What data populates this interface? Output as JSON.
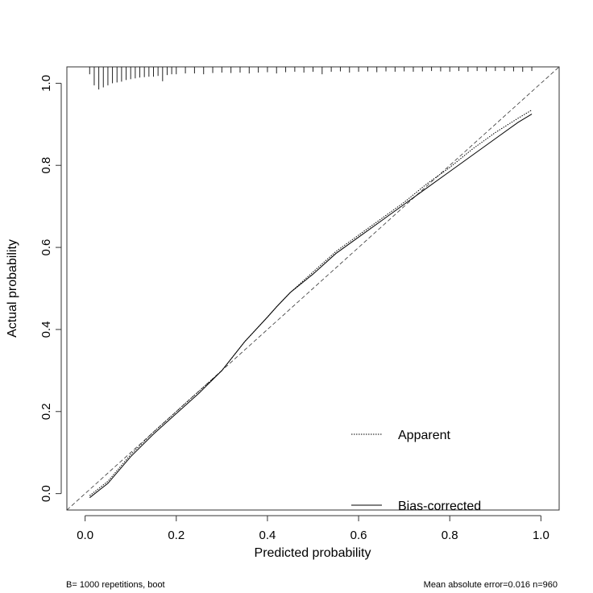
{
  "chart_data": {
    "type": "line",
    "title": "",
    "xlabel": "Predicted probability",
    "ylabel": "Actual probability",
    "xlim": [
      -0.04,
      1.04
    ],
    "ylim": [
      -0.04,
      1.04
    ],
    "x_ticks": [
      0.0,
      0.2,
      0.4,
      0.6,
      0.8,
      1.0
    ],
    "x_tick_labels": [
      "0.0",
      "0.2",
      "0.4",
      "0.6",
      "0.8",
      "1.0"
    ],
    "y_ticks": [
      0.0,
      0.2,
      0.4,
      0.6,
      0.8,
      1.0
    ],
    "y_tick_labels": [
      "0.0",
      "0.2",
      "0.4",
      "0.6",
      "0.8",
      "1.0"
    ],
    "grid": false,
    "legend_position": "bottom-right",
    "reference_line": {
      "style": "dashed",
      "from": [
        -0.04,
        -0.04
      ],
      "to": [
        1.04,
        1.04
      ]
    },
    "series": [
      {
        "name": "Apparent",
        "style": "dotted",
        "x": [
          0.01,
          0.05,
          0.1,
          0.15,
          0.2,
          0.25,
          0.3,
          0.35,
          0.4,
          0.42,
          0.45,
          0.5,
          0.55,
          0.6,
          0.65,
          0.7,
          0.75,
          0.8,
          0.85,
          0.9,
          0.95,
          0.98
        ],
        "y": [
          -0.005,
          0.03,
          0.095,
          0.15,
          0.2,
          0.25,
          0.3,
          0.37,
          0.43,
          0.455,
          0.49,
          0.54,
          0.59,
          0.63,
          0.67,
          0.71,
          0.755,
          0.795,
          0.84,
          0.88,
          0.915,
          0.935
        ]
      },
      {
        "name": "Bias-corrected",
        "style": "solid",
        "x": [
          0.01,
          0.05,
          0.1,
          0.15,
          0.2,
          0.25,
          0.3,
          0.35,
          0.4,
          0.42,
          0.45,
          0.5,
          0.55,
          0.6,
          0.65,
          0.7,
          0.75,
          0.8,
          0.85,
          0.9,
          0.95,
          0.98
        ],
        "y": [
          -0.01,
          0.025,
          0.09,
          0.145,
          0.195,
          0.245,
          0.3,
          0.37,
          0.43,
          0.455,
          0.49,
          0.535,
          0.585,
          0.625,
          0.665,
          0.705,
          0.745,
          0.785,
          0.825,
          0.865,
          0.905,
          0.925
        ]
      }
    ],
    "rug": {
      "baseline": 1.04,
      "x": [
        0.01,
        0.02,
        0.03,
        0.04,
        0.05,
        0.06,
        0.07,
        0.08,
        0.09,
        0.1,
        0.11,
        0.12,
        0.13,
        0.14,
        0.15,
        0.16,
        0.17,
        0.18,
        0.19,
        0.2,
        0.22,
        0.24,
        0.26,
        0.28,
        0.3,
        0.32,
        0.34,
        0.36,
        0.38,
        0.4,
        0.42,
        0.44,
        0.46,
        0.48,
        0.5,
        0.52,
        0.54,
        0.56,
        0.58,
        0.6,
        0.62,
        0.64,
        0.66,
        0.68,
        0.7,
        0.72,
        0.74,
        0.76,
        0.78,
        0.8,
        0.82,
        0.84,
        0.86,
        0.88,
        0.9,
        0.92,
        0.94,
        0.96,
        0.98
      ],
      "length": [
        0.018,
        0.045,
        0.055,
        0.05,
        0.045,
        0.04,
        0.038,
        0.036,
        0.032,
        0.03,
        0.028,
        0.026,
        0.025,
        0.024,
        0.024,
        0.022,
        0.035,
        0.02,
        0.018,
        0.018,
        0.016,
        0.016,
        0.018,
        0.015,
        0.014,
        0.015,
        0.014,
        0.016,
        0.014,
        0.013,
        0.016,
        0.013,
        0.012,
        0.014,
        0.012,
        0.018,
        0.012,
        0.011,
        0.014,
        0.012,
        0.011,
        0.013,
        0.011,
        0.012,
        0.011,
        0.012,
        0.011,
        0.01,
        0.011,
        0.012,
        0.01,
        0.012,
        0.01,
        0.011,
        0.01,
        0.01,
        0.011,
        0.012,
        0.01
      ]
    },
    "legend": [
      {
        "label": "Apparent",
        "style": "dotted"
      },
      {
        "label": "Bias-corrected",
        "style": "solid"
      }
    ]
  },
  "footer": {
    "left": "B= 1000 repetitions, boot",
    "right": "Mean absolute error=0.016 n=960"
  },
  "colors": {
    "ink": "#000000",
    "background": "#ffffff",
    "axis": "#333333"
  }
}
